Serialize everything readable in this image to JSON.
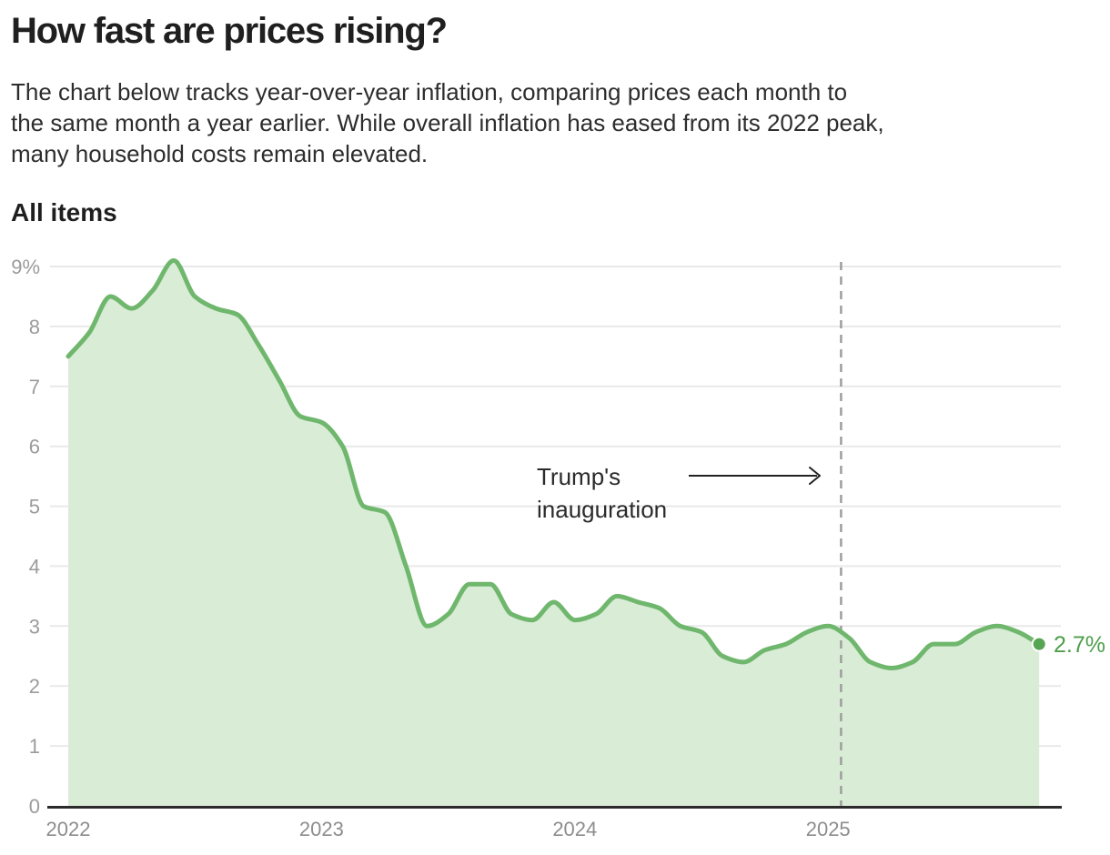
{
  "page": {
    "title": "How fast are prices rising?",
    "subtitle_lines": [
      "The chart below tracks year-over-year inflation, comparing prices each month to",
      "the same month a year earlier. While overall inflation has eased from its 2022 peak,",
      "many household costs remain elevated."
    ]
  },
  "chart_data": {
    "type": "area",
    "title": "All items",
    "series_name": "Year-over-year inflation",
    "unit": "%",
    "x": [
      "2022-01",
      "2022-02",
      "2022-03",
      "2022-04",
      "2022-05",
      "2022-06",
      "2022-07",
      "2022-08",
      "2022-09",
      "2022-10",
      "2022-11",
      "2022-12",
      "2023-01",
      "2023-02",
      "2023-03",
      "2023-04",
      "2023-05",
      "2023-06",
      "2023-07",
      "2023-08",
      "2023-09",
      "2023-10",
      "2023-11",
      "2023-12",
      "2024-01",
      "2024-02",
      "2024-03",
      "2024-04",
      "2024-05",
      "2024-06",
      "2024-07",
      "2024-08",
      "2024-09",
      "2024-10",
      "2024-11",
      "2024-12",
      "2025-01",
      "2025-02",
      "2025-03",
      "2025-04",
      "2025-05",
      "2025-06",
      "2025-07",
      "2025-08",
      "2025-09",
      "2025-10",
      "2025-11"
    ],
    "values": [
      7.5,
      7.9,
      8.5,
      8.3,
      8.6,
      9.1,
      8.5,
      8.3,
      8.2,
      7.7,
      7.1,
      6.5,
      6.4,
      6.0,
      5.0,
      4.9,
      4.0,
      3.0,
      3.2,
      3.7,
      3.7,
      3.2,
      3.1,
      3.4,
      3.1,
      3.2,
      3.5,
      3.4,
      3.3,
      3.0,
      2.9,
      2.5,
      2.4,
      2.6,
      2.7,
      2.9,
      3.0,
      2.8,
      2.4,
      2.3,
      2.4,
      2.7,
      2.7,
      2.9,
      3.0,
      2.9,
      2.7
    ],
    "ylim": [
      0,
      9
    ],
    "y_tick_values": [
      9,
      8,
      7,
      6,
      5,
      4,
      3,
      2,
      1,
      0
    ],
    "y_tick_labels": [
      "9%",
      "8",
      "7",
      "6",
      "5",
      "4",
      "3",
      "2",
      "1",
      "0"
    ],
    "x_tick_labels": [
      "2022",
      "2023",
      "2024",
      "2025"
    ],
    "grid": "horizontal",
    "legend": "none",
    "end_label": "2.7%",
    "annotation": {
      "line1": "Trump's",
      "line2": "inauguration"
    },
    "colors": {
      "line": "#70b76e",
      "fill": "#d9ecd6",
      "dot": "#55a553",
      "end_label": "#4d9e4b",
      "grid": "#e9e9e9",
      "axis": "#2b2b2b",
      "dashed_marker": "#9e9e9e"
    }
  }
}
